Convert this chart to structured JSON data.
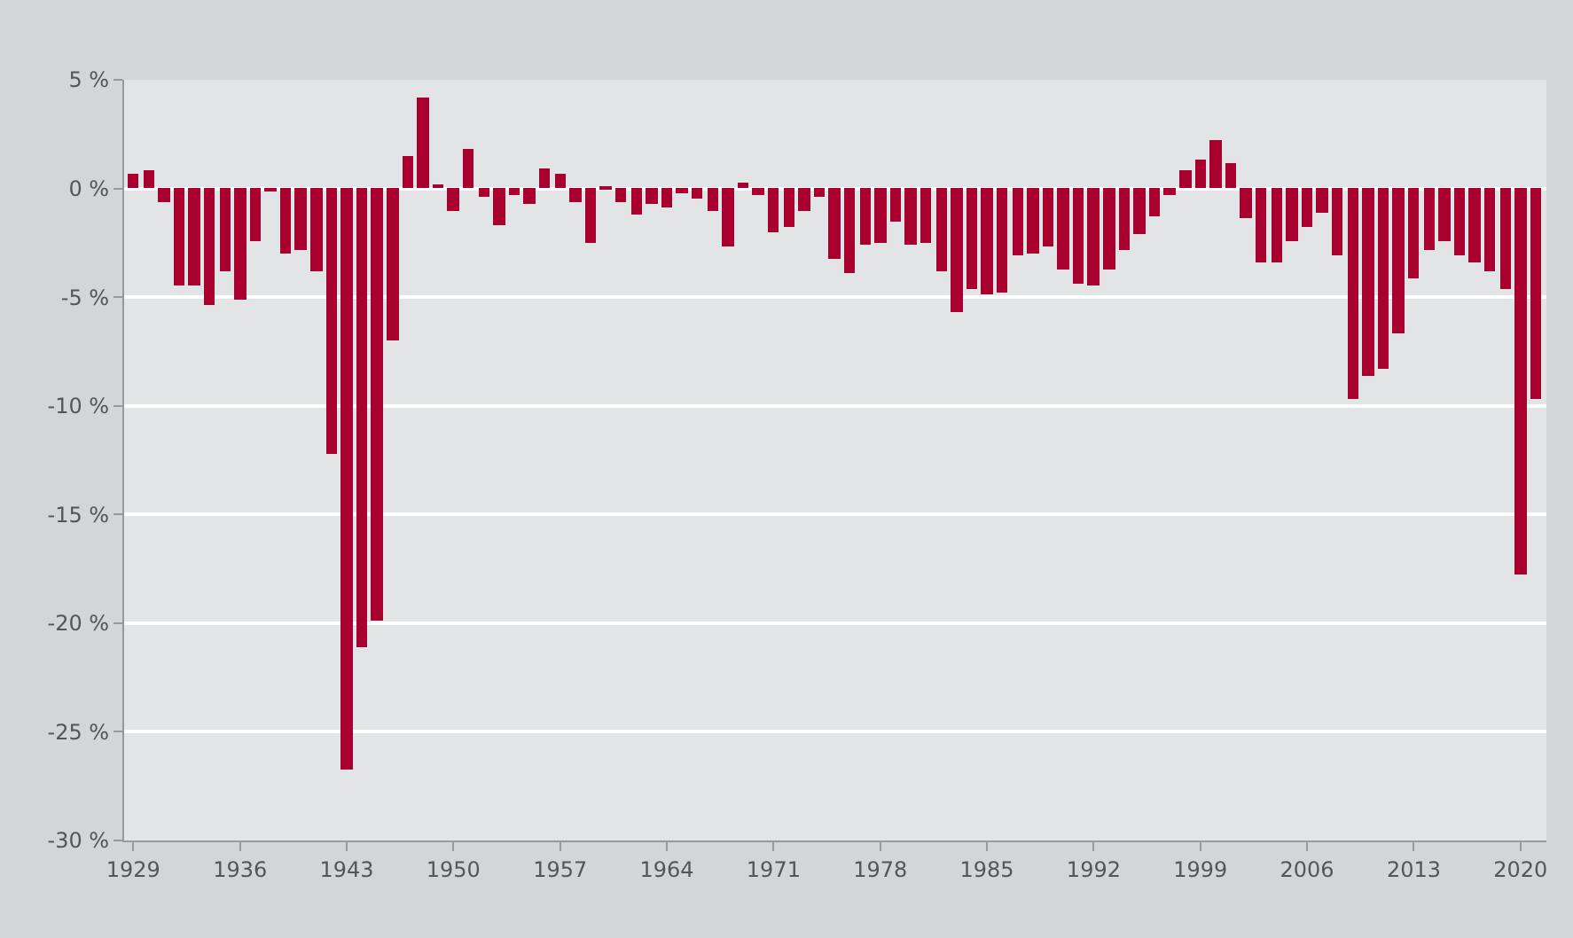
{
  "chart_data": {
    "type": "bar",
    "x": [
      1929,
      1930,
      1931,
      1932,
      1933,
      1934,
      1935,
      1936,
      1937,
      1938,
      1939,
      1940,
      1941,
      1942,
      1943,
      1944,
      1945,
      1946,
      1947,
      1948,
      1949,
      1950,
      1951,
      1952,
      1953,
      1954,
      1955,
      1956,
      1957,
      1958,
      1959,
      1960,
      1961,
      1962,
      1963,
      1964,
      1965,
      1966,
      1967,
      1968,
      1969,
      1970,
      1971,
      1972,
      1973,
      1974,
      1975,
      1976,
      1977,
      1978,
      1979,
      1980,
      1981,
      1982,
      1983,
      1984,
      1985,
      1986,
      1987,
      1988,
      1989,
      1990,
      1991,
      1992,
      1993,
      1994,
      1995,
      1996,
      1997,
      1998,
      1999,
      2000,
      2001,
      2002,
      2003,
      2004,
      2005,
      2006,
      2007,
      2008,
      2009,
      2010,
      2011,
      2012,
      2013,
      2014,
      2015,
      2016,
      2017,
      2018,
      2019,
      2020,
      2021
    ],
    "values": [
      0.7,
      0.8,
      -0.6,
      -4.5,
      -4.5,
      -5.4,
      -3.8,
      -5.1,
      -2.4,
      -0.1,
      -3.0,
      -2.8,
      -3.8,
      -12.2,
      -26.7,
      -21.1,
      -19.9,
      -7.0,
      1.5,
      4.2,
      0.2,
      -1.0,
      1.8,
      -0.4,
      -1.7,
      -0.3,
      -0.7,
      0.9,
      0.7,
      -0.6,
      -2.5,
      0.1,
      -0.6,
      -1.2,
      -0.7,
      -0.9,
      -0.2,
      -0.5,
      -1.0,
      -2.7,
      0.3,
      -0.3,
      -2.0,
      -1.8,
      -1.0,
      -0.4,
      -3.2,
      -3.9,
      -2.6,
      -2.5,
      -1.5,
      -2.6,
      -2.5,
      -3.8,
      -5.7,
      -4.6,
      -4.9,
      -4.8,
      -3.1,
      -3.0,
      -2.7,
      -3.7,
      -4.4,
      -4.5,
      -3.7,
      -2.8,
      -2.1,
      -1.3,
      -0.3,
      0.8,
      1.3,
      2.2,
      1.2,
      -1.4,
      -3.4,
      -3.4,
      -2.4,
      -1.8,
      -1.1,
      -3.1,
      -9.7,
      -8.6,
      -8.3,
      -6.7,
      -4.1,
      -2.8,
      -2.4,
      -3.1,
      -3.4,
      -3.8,
      -4.6,
      -17.8,
      -9.7
    ],
    "color": "#a8002f",
    "xlim": [
      1928.4,
      2021.7
    ],
    "xticks": [
      1929,
      1936,
      1943,
      1950,
      1957,
      1964,
      1971,
      1978,
      1985,
      1992,
      1999,
      2006,
      2013,
      2020
    ],
    "ylim": [
      -30,
      5
    ],
    "yticks": [
      {
        "value": 5,
        "label": "5 %"
      },
      {
        "value": 0,
        "label": "0 %"
      },
      {
        "value": -5,
        "label": "-5 %"
      },
      {
        "value": -10,
        "label": "-10 %"
      },
      {
        "value": -15,
        "label": "-15 %"
      },
      {
        "value": -20,
        "label": "-20 %"
      },
      {
        "value": -25,
        "label": "-25 %"
      },
      {
        "value": -30,
        "label": "-30 %"
      }
    ],
    "grid": "y"
  }
}
